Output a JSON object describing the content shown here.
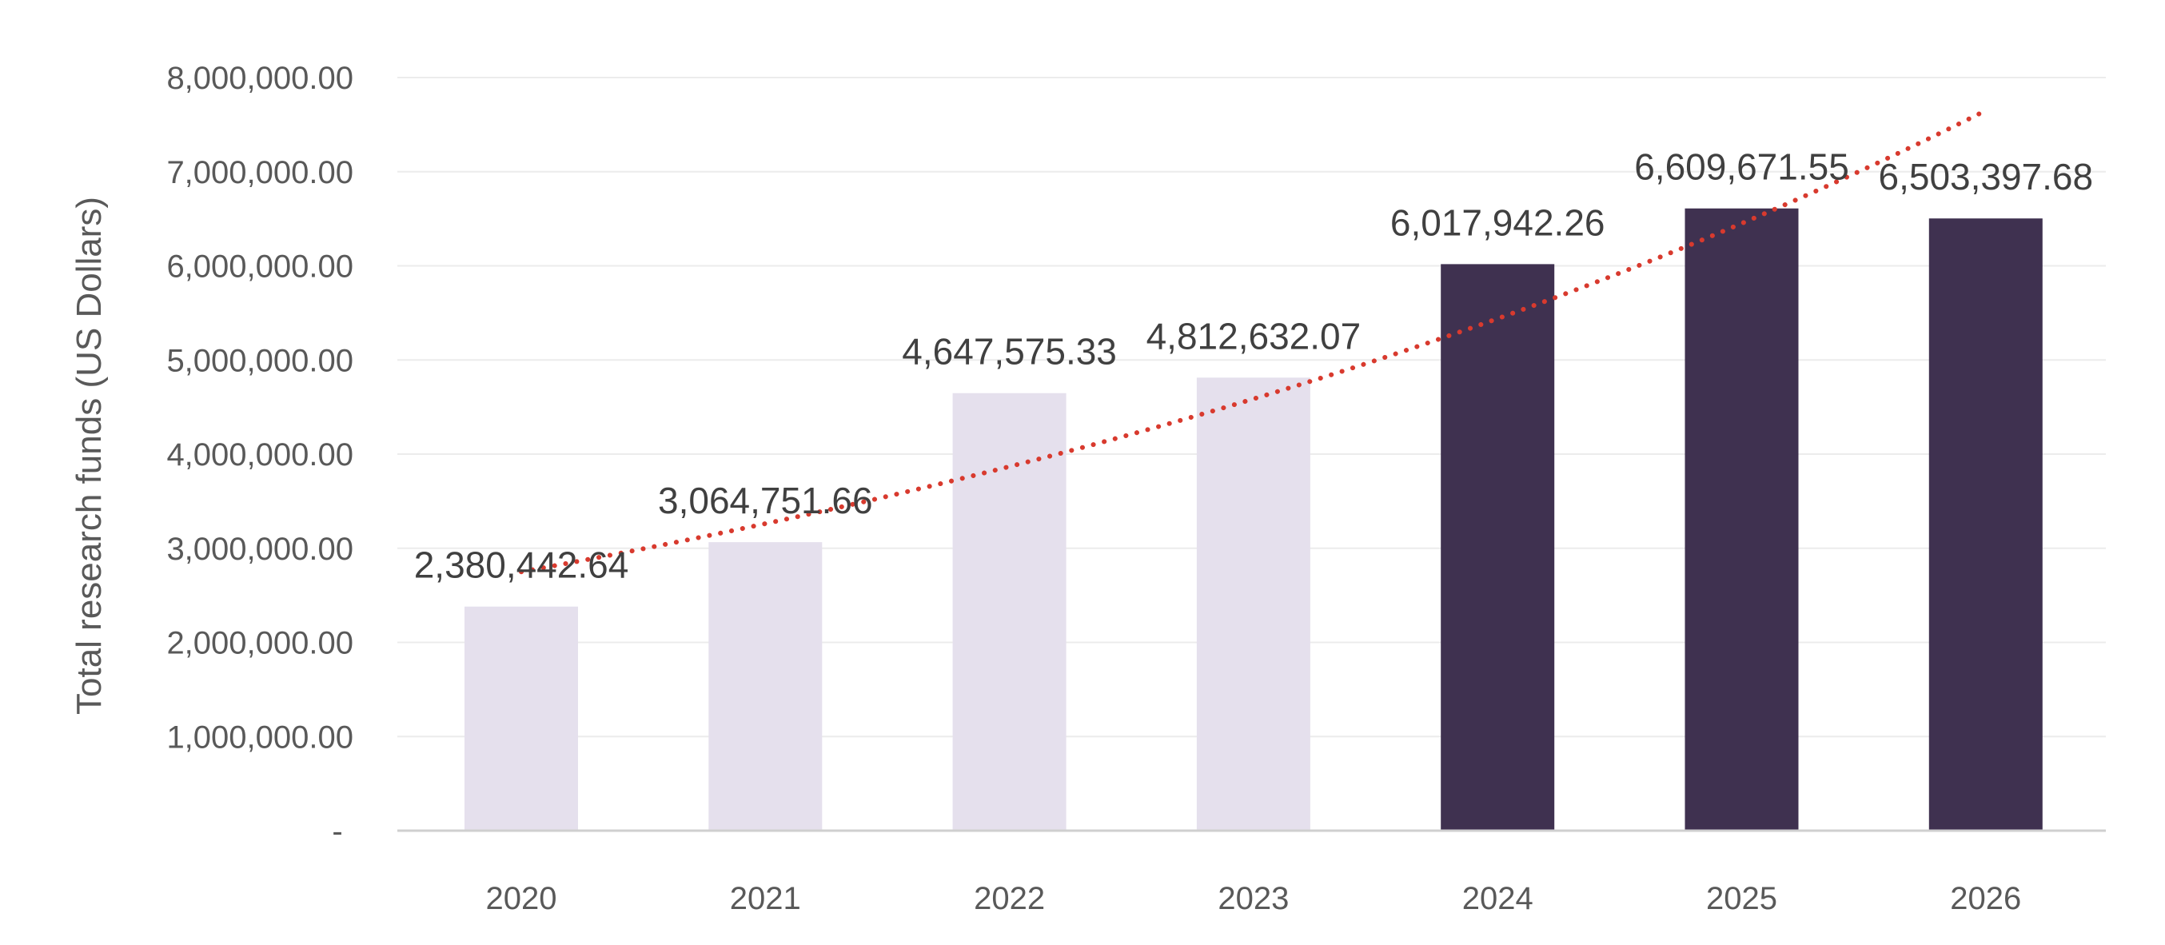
{
  "chart_data": {
    "type": "bar",
    "categories": [
      "2020",
      "2021",
      "2022",
      "2023",
      "2024",
      "2025",
      "2026"
    ],
    "values": [
      2380442.64,
      3064751.66,
      4647575.33,
      4812632.07,
      6017942.26,
      6609671.55,
      6503397.68
    ],
    "value_labels": [
      "2,380,442.64",
      "3,064,751.66",
      "4,647,575.33",
      "4,812,632.07",
      "6,017,942.26",
      "6,609,671.55",
      "6,503,397.68"
    ],
    "bar_colors": [
      "#e5e0ed",
      "#e5e0ed",
      "#e5e0ed",
      "#e5e0ed",
      "#3f3150",
      "#3f3150",
      "#3f3150"
    ],
    "title": "",
    "xlabel": "",
    "ylabel": "Total research funds (US Dollars)",
    "ylim": [
      0,
      8000000
    ],
    "y_ticks": [
      0,
      1000000,
      2000000,
      3000000,
      4000000,
      5000000,
      6000000,
      7000000,
      8000000
    ],
    "y_tick_labels": [
      "-",
      "1,000,000.00",
      "2,000,000.00",
      "3,000,000.00",
      "4,000,000.00",
      "5,000,000.00",
      "6,000,000.00",
      "7,000,000.00",
      "8,000,000.00"
    ],
    "grid": true,
    "trendline": {
      "type": "exponential",
      "style": "dotted",
      "color": "#d83a2e",
      "start_value": 2750000,
      "end_value": 7650000
    }
  }
}
